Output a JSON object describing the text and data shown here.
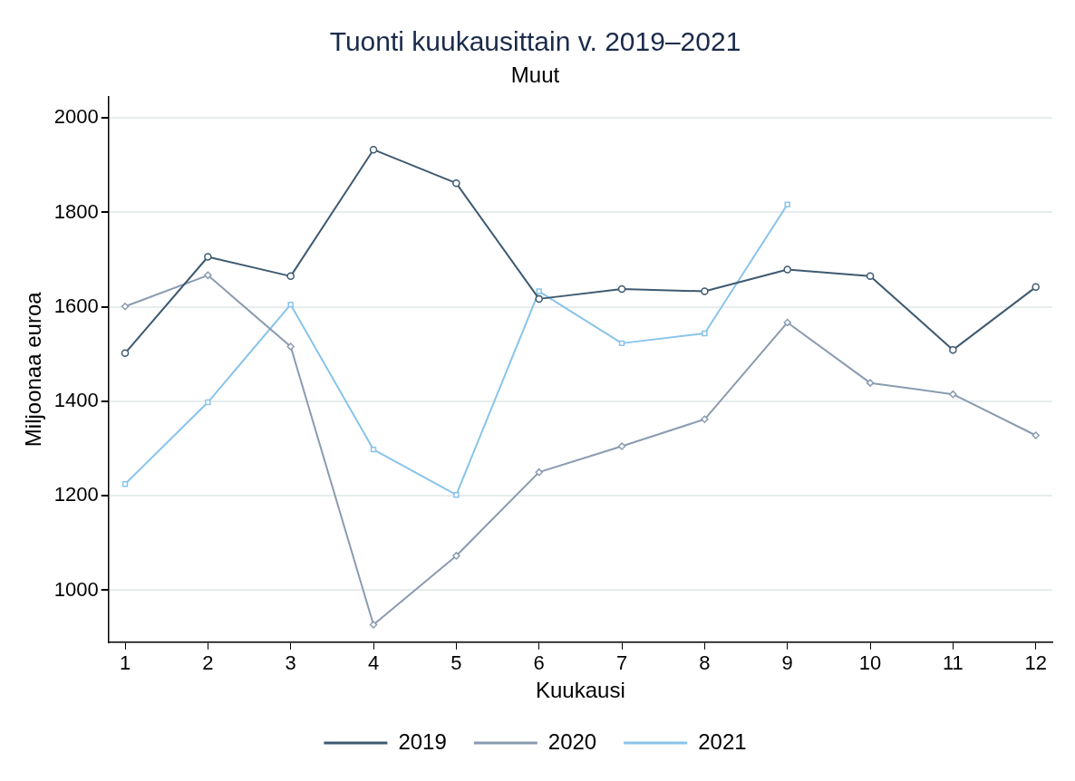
{
  "chart_data": {
    "type": "line",
    "title": "Tuonti kuukausittain v. 2019–2021",
    "subtitle": "Muut",
    "xlabel": "Kuukausi",
    "ylabel": "Miljoonaa euroa",
    "x": [
      1,
      2,
      3,
      4,
      5,
      6,
      7,
      8,
      9,
      10,
      11,
      12
    ],
    "xlim": [
      0.8,
      12.2
    ],
    "xticks": [
      1,
      2,
      3,
      4,
      5,
      6,
      7,
      8,
      9,
      10,
      11,
      12
    ],
    "ylim": [
      890,
      2045
    ],
    "yticks": [
      1000,
      1200,
      1400,
      1600,
      1800,
      2000
    ],
    "grid": "y",
    "legend": "bottom",
    "series": [
      {
        "name": "2019",
        "color": "#3e5a70",
        "marker": "circle",
        "values": [
          1502,
          1706,
          1665,
          1933,
          1862,
          1617,
          1638,
          1633,
          1679,
          1665,
          1509,
          1642
        ]
      },
      {
        "name": "2020",
        "color": "#8a9bb0",
        "marker": "diamond",
        "values": [
          1601,
          1667,
          1516,
          927,
          1073,
          1250,
          1305,
          1362,
          1567,
          1439,
          1415,
          1328
        ]
      },
      {
        "name": "2021",
        "color": "#89c4ea",
        "marker": "square",
        "values": [
          1225,
          1398,
          1605,
          1298,
          1202,
          1633,
          1523,
          1544,
          1817,
          null,
          null,
          null
        ]
      }
    ]
  }
}
